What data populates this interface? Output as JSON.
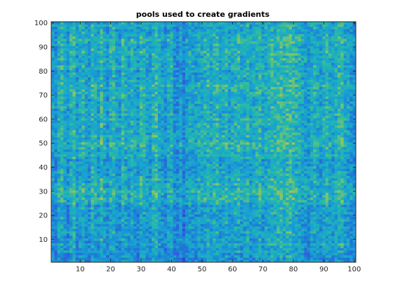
{
  "chart_data": {
    "type": "heatmap",
    "title": "pools used to create gradients",
    "xlabel": "",
    "ylabel": "",
    "xlim": [
      0.5,
      100.5
    ],
    "ylim": [
      0.5,
      100.5
    ],
    "x_ticks": [
      10,
      20,
      30,
      40,
      50,
      60,
      70,
      80,
      90,
      100
    ],
    "y_ticks": [
      10,
      20,
      30,
      40,
      50,
      60,
      70,
      80,
      90,
      100
    ],
    "rows": 100,
    "cols": 100,
    "y_direction": "normal",
    "grid": false,
    "colormap": "parula",
    "colors": {
      "low": "#3e26a8",
      "mid_low": "#1f78d4",
      "mid": "#23b0c4",
      "mid_high": "#7cc46b",
      "high": "#f4d42f",
      "axes_border": "#262626"
    },
    "value_note": "Matrix values read approximately from colors: column and row bands combine into a plaid pattern; values range 0 (dark blue) to 1 (yellow).",
    "column_levels": [
      0.45,
      0.3,
      0.55,
      0.62,
      0.48,
      0.35,
      0.58,
      0.66,
      0.4,
      0.52,
      0.6,
      0.47,
      0.38,
      0.63,
      0.55,
      0.42,
      0.68,
      0.5,
      0.36,
      0.57,
      0.61,
      0.45,
      0.39,
      0.64,
      0.53,
      0.44,
      0.59,
      0.49,
      0.37,
      0.62,
      0.56,
      0.46,
      0.41,
      0.6,
      0.66,
      0.5,
      0.43,
      0.35,
      0.52,
      0.58,
      0.31,
      0.28,
      0.45,
      0.22,
      0.4,
      0.5,
      0.47,
      0.44,
      0.53,
      0.5,
      0.56,
      0.62,
      0.51,
      0.58,
      0.64,
      0.49,
      0.55,
      0.61,
      0.46,
      0.52,
      0.57,
      0.63,
      0.48,
      0.54,
      0.6,
      0.45,
      0.5,
      0.56,
      0.62,
      0.47,
      0.53,
      0.58,
      0.64,
      0.59,
      0.66,
      0.7,
      0.62,
      0.68,
      0.72,
      0.65,
      0.6,
      0.55,
      0.5,
      0.45,
      0.38,
      0.52,
      0.57,
      0.49,
      0.44,
      0.55,
      0.6,
      0.51,
      0.46,
      0.56,
      0.62,
      0.67,
      0.5,
      0.45,
      0.4,
      0.35
    ],
    "row_levels": [
      0.3,
      0.25,
      0.35,
      0.28,
      0.4,
      0.33,
      0.38,
      0.45,
      0.36,
      0.42,
      0.34,
      0.39,
      0.44,
      0.37,
      0.41,
      0.35,
      0.43,
      0.38,
      0.4,
      0.33,
      0.45,
      0.38,
      0.42,
      0.36,
      0.5,
      0.55,
      0.6,
      0.52,
      0.58,
      0.62,
      0.56,
      0.5,
      0.54,
      0.48,
      0.52,
      0.45,
      0.42,
      0.46,
      0.4,
      0.44,
      0.38,
      0.42,
      0.36,
      0.48,
      0.52,
      0.46,
      0.5,
      0.55,
      0.58,
      0.6,
      0.54,
      0.5,
      0.56,
      0.48,
      0.52,
      0.46,
      0.5,
      0.54,
      0.48,
      0.52,
      0.47,
      0.51,
      0.45,
      0.49,
      0.53,
      0.47,
      0.5,
      0.44,
      0.48,
      0.52,
      0.56,
      0.5,
      0.54,
      0.58,
      0.52,
      0.48,
      0.44,
      0.5,
      0.46,
      0.42,
      0.48,
      0.52,
      0.46,
      0.5,
      0.54,
      0.48,
      0.52,
      0.56,
      0.5,
      0.46,
      0.5,
      0.54,
      0.58,
      0.52,
      0.48,
      0.44,
      0.4,
      0.46,
      0.5,
      0.45
    ]
  }
}
